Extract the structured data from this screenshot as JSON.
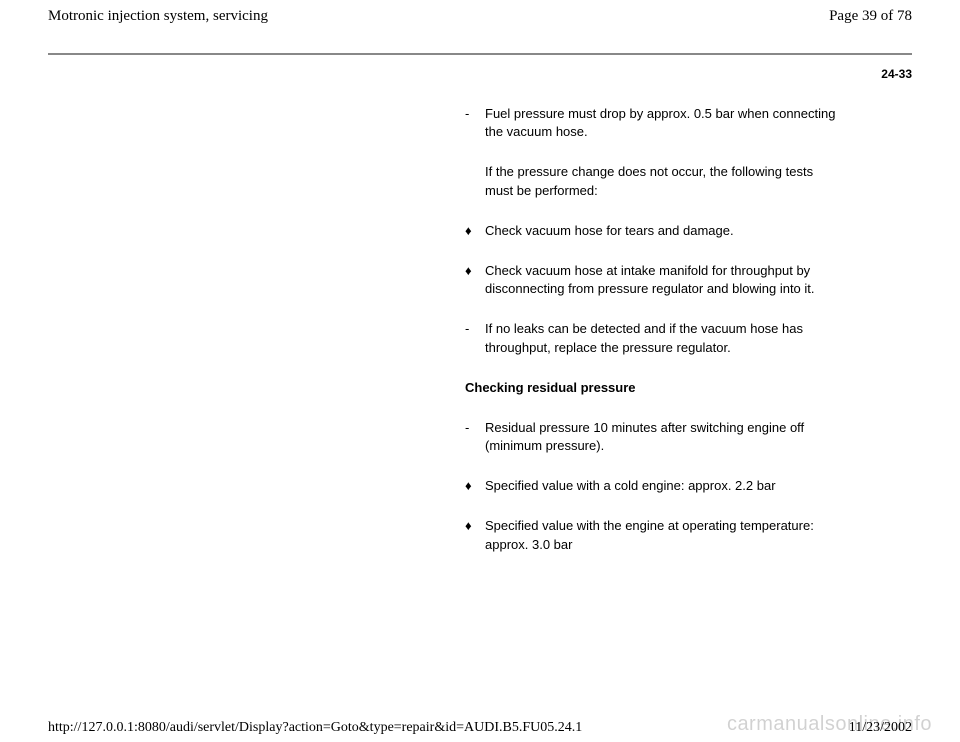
{
  "header": {
    "title": "Motronic injection system, servicing",
    "pageCount": "Page 39 of 78"
  },
  "pageLabel": "24-33",
  "body": {
    "items": [
      {
        "marker": "- ",
        "text": "Fuel pressure must drop by approx. 0.5 bar when connecting the vacuum hose."
      },
      {
        "marker": "",
        "text": "If the pressure change does not occur, the following tests must be performed:"
      },
      {
        "marker": "♦ ",
        "text": "Check vacuum hose for tears and damage."
      },
      {
        "marker": "♦ ",
        "text": "Check vacuum hose at intake manifold for throughput by disconnecting from pressure regulator and blowing into it."
      },
      {
        "marker": "- ",
        "text": "If no leaks can be detected and if the vacuum hose has throughput, replace the pressure regulator."
      }
    ],
    "subheading": "Checking residual pressure",
    "items2": [
      {
        "marker": "- ",
        "text": "Residual pressure 10 minutes after switching engine off (minimum pressure)."
      },
      {
        "marker": "♦ ",
        "text": "Specified value with a cold engine: approx. 2.2 bar"
      },
      {
        "marker": "♦ ",
        "text": "Specified value with the engine at operating temperature: approx. 3.0 bar"
      }
    ]
  },
  "footer": {
    "url": "http://127.0.0.1:8080/audi/servlet/Display?action=Goto&type=repair&id=AUDI.B5.FU05.24.1",
    "date": "11/23/2002"
  },
  "watermark": "carmanualsonline.info"
}
